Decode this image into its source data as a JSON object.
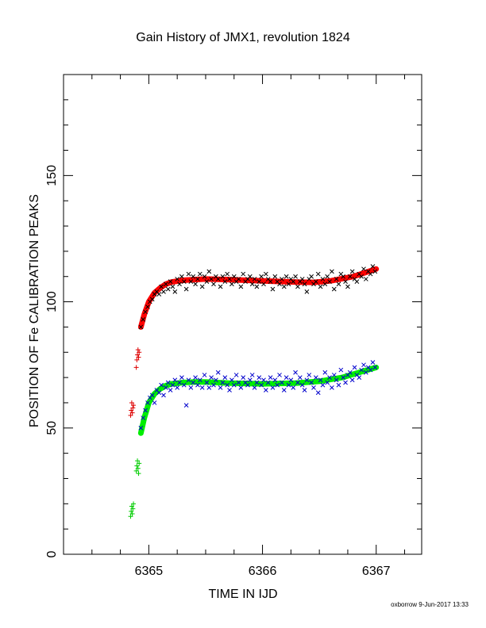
{
  "chart_data": {
    "type": "scatter",
    "title": "Gain History of JMX1, revolution 1824",
    "xlabel": "TIME IN IJD",
    "ylabel": "POSITION OF Fe CALIBRATION PEAKS",
    "xlim": [
      6364.25,
      6367.4
    ],
    "ylim": [
      0,
      190
    ],
    "x_ticks": [
      6365,
      6366,
      6367
    ],
    "x_tick_labels": [
      "6365",
      "6366",
      "6367"
    ],
    "y_ticks": [
      0,
      50,
      100,
      150
    ],
    "y_tick_labels": [
      "0",
      "50",
      "100",
      "150"
    ],
    "grid": false,
    "legend": "none",
    "colors": {
      "upper_points": "#000000",
      "upper_fit": "#ff0000",
      "lower_points": "#0000cc",
      "lower_fit": "#00ee00",
      "red_cross": "#dd0000",
      "green_cross": "#00cc00"
    },
    "series": [
      {
        "marker": "x",
        "color": "#000000",
        "x": [
          6364.93,
          6364.95,
          6364.97,
          6364.99,
          6365.01,
          6365.03,
          6365.05,
          6365.07,
          6365.09,
          6365.11,
          6365.13,
          6365.15,
          6365.17,
          6365.19,
          6365.21,
          6365.23,
          6365.25,
          6365.27,
          6365.29,
          6365.31,
          6365.33,
          6365.35,
          6365.37,
          6365.39,
          6365.41,
          6365.43,
          6365.45,
          6365.47,
          6365.49,
          6365.51,
          6365.53,
          6365.55,
          6365.57,
          6365.59,
          6365.61,
          6365.63,
          6365.65,
          6365.67,
          6365.69,
          6365.71,
          6365.73,
          6365.75,
          6365.77,
          6365.79,
          6365.81,
          6365.83,
          6365.85,
          6365.87,
          6365.89,
          6365.91,
          6365.93,
          6365.95,
          6365.97,
          6365.99,
          6366.01,
          6366.03,
          6366.05,
          6366.07,
          6366.09,
          6366.11,
          6366.13,
          6366.15,
          6366.17,
          6366.19,
          6366.21,
          6366.23,
          6366.25,
          6366.27,
          6366.29,
          6366.31,
          6366.33,
          6366.35,
          6366.37,
          6366.39,
          6366.41,
          6366.43,
          6366.45,
          6366.47,
          6366.49,
          6366.51,
          6366.53,
          6366.55,
          6366.57,
          6366.59,
          6366.61,
          6366.63,
          6366.65,
          6366.67,
          6366.69,
          6366.71,
          6366.73,
          6366.75,
          6366.77,
          6366.79,
          6366.81,
          6366.83,
          6366.85,
          6366.87,
          6366.89,
          6366.91,
          6366.93,
          6366.95,
          6366.97,
          6366.99
        ],
        "y": [
          90,
          93,
          96,
          98,
          100,
          101,
          103,
          104,
          103,
          106,
          104,
          107,
          105,
          108,
          106,
          104,
          109,
          107,
          110,
          108,
          105,
          111,
          108,
          110,
          107,
          109,
          111,
          106,
          110,
          108,
          112,
          109,
          107,
          110,
          109,
          106,
          110,
          108,
          111,
          109,
          107,
          110,
          108,
          109,
          106,
          111,
          108,
          109,
          110,
          107,
          109,
          106,
          108,
          110,
          107,
          111,
          109,
          108,
          105,
          110,
          108,
          107,
          109,
          106,
          110,
          107,
          109,
          108,
          110,
          106,
          108,
          109,
          107,
          104,
          109,
          110,
          107,
          108,
          111,
          106,
          109,
          107,
          110,
          108,
          112,
          105,
          109,
          107,
          111,
          110,
          108,
          106,
          110,
          112,
          109,
          108,
          111,
          110,
          113,
          109,
          112,
          111,
          114,
          112
        ]
      },
      {
        "marker": "x",
        "color": "#0000cc",
        "x": [
          6364.93,
          6364.95,
          6364.97,
          6364.99,
          6365.01,
          6365.03,
          6365.05,
          6365.07,
          6365.09,
          6365.11,
          6365.13,
          6365.15,
          6365.17,
          6365.19,
          6365.21,
          6365.23,
          6365.25,
          6365.27,
          6365.29,
          6365.31,
          6365.33,
          6365.35,
          6365.37,
          6365.39,
          6365.41,
          6365.43,
          6365.45,
          6365.47,
          6365.49,
          6365.51,
          6365.53,
          6365.55,
          6365.57,
          6365.59,
          6365.61,
          6365.63,
          6365.65,
          6365.67,
          6365.69,
          6365.71,
          6365.73,
          6365.75,
          6365.77,
          6365.79,
          6365.81,
          6365.83,
          6365.85,
          6365.87,
          6365.89,
          6365.91,
          6365.93,
          6365.95,
          6365.97,
          6365.99,
          6366.01,
          6366.03,
          6366.05,
          6366.07,
          6366.09,
          6366.11,
          6366.13,
          6366.15,
          6366.17,
          6366.19,
          6366.21,
          6366.23,
          6366.25,
          6366.27,
          6366.29,
          6366.31,
          6366.33,
          6366.35,
          6366.37,
          6366.39,
          6366.41,
          6366.43,
          6366.45,
          6366.47,
          6366.49,
          6366.51,
          6366.53,
          6366.55,
          6366.57,
          6366.59,
          6366.61,
          6366.63,
          6366.65,
          6366.67,
          6366.69,
          6366.71,
          6366.73,
          6366.75,
          6366.77,
          6366.79,
          6366.81,
          6366.83,
          6366.85,
          6366.87,
          6366.89,
          6366.91,
          6366.93,
          6366.95,
          6366.97,
          6366.99
        ],
        "y": [
          50,
          54,
          57,
          60,
          62,
          63,
          60,
          65,
          64,
          67,
          63,
          66,
          68,
          65,
          67,
          69,
          66,
          68,
          70,
          67,
          59,
          69,
          66,
          68,
          70,
          67,
          69,
          66,
          71,
          68,
          66,
          70,
          67,
          69,
          72,
          66,
          68,
          70,
          67,
          65,
          69,
          67,
          71,
          68,
          66,
          70,
          68,
          67,
          69,
          71,
          66,
          68,
          70,
          67,
          69,
          65,
          68,
          70,
          66,
          69,
          67,
          71,
          68,
          65,
          70,
          67,
          69,
          66,
          72,
          68,
          70,
          67,
          65,
          69,
          71,
          68,
          66,
          70,
          64,
          69,
          67,
          72,
          68,
          70,
          66,
          71,
          69,
          67,
          73,
          70,
          68,
          71,
          72,
          69,
          74,
          71,
          70,
          73,
          75,
          72,
          74,
          73,
          76,
          74
        ]
      },
      {
        "name": "",
        "marker": "+",
        "color": "#dd0000",
        "x": [
          6364.84,
          6364.845,
          6364.85,
          6364.855,
          6364.86,
          6364.865,
          6364.89,
          6364.895,
          6364.9,
          6364.905,
          6364.91,
          6364.915
        ],
        "y": [
          55,
          57,
          60,
          56,
          58,
          59,
          74,
          77,
          79,
          81,
          78,
          80
        ]
      },
      {
        "marker": "+",
        "color": "#00cc00",
        "x": [
          6364.84,
          6364.845,
          6364.85,
          6364.855,
          6364.86,
          6364.865,
          6364.89,
          6364.895,
          6364.9,
          6364.905,
          6364.91,
          6364.915
        ],
        "y": [
          15,
          17,
          19,
          16,
          18,
          20,
          33,
          35,
          37,
          34,
          32,
          36
        ]
      }
    ],
    "fits": [
      {
        "color": "#ff0000",
        "x": [
          6364.93,
          6364.96,
          6365.0,
          6365.05,
          6365.1,
          6365.15,
          6365.2,
          6365.3,
          6365.4,
          6365.5,
          6365.7,
          6366.0,
          6366.3,
          6366.45,
          6366.6,
          6366.8,
          6367.0
        ],
        "y": [
          90,
          95,
          100,
          103.5,
          105.5,
          107,
          107.8,
          108.5,
          108.8,
          109,
          108.8,
          108.3,
          107.8,
          107.7,
          108.3,
          110,
          113
        ]
      },
      {
        "color": "#00ee00",
        "x": [
          6364.93,
          6364.96,
          6365.0,
          6365.05,
          6365.1,
          6365.15,
          6365.2,
          6365.3,
          6365.4,
          6365.5,
          6365.7,
          6366.0,
          6366.3,
          6366.5,
          6366.7,
          6366.85,
          6367.0
        ],
        "y": [
          48,
          54,
          60,
          63.5,
          65.5,
          66.8,
          67.5,
          68,
          68.2,
          68.2,
          67.8,
          67.5,
          67.8,
          68.5,
          70,
          72,
          74
        ]
      }
    ]
  },
  "footer": {
    "credit": "oxborrow  9-Jun-2017 13:33"
  }
}
